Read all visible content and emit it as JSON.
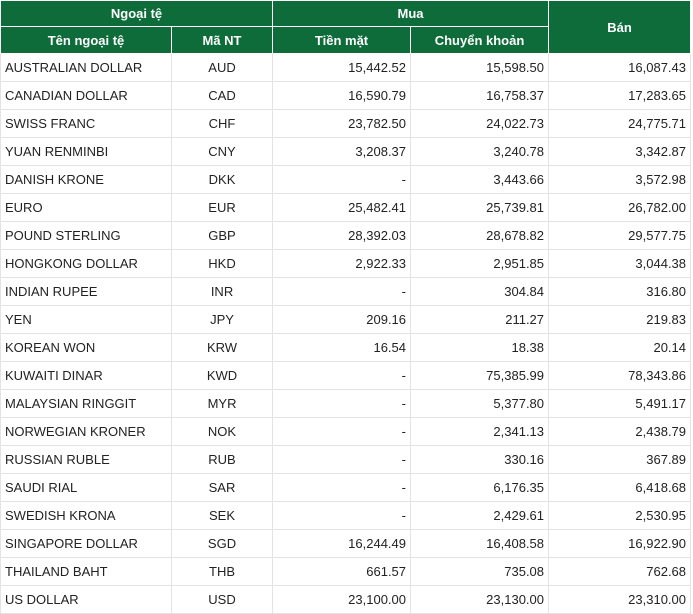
{
  "header": {
    "group_currency": "Ngoại tệ",
    "group_buy": "Mua",
    "sell": "Bán",
    "col_name": "Tên ngoại tệ",
    "col_code": "Mã NT",
    "col_cash": "Tiền mặt",
    "col_transfer": "Chuyển khoản"
  },
  "rows": [
    {
      "name": "AUSTRALIAN DOLLAR",
      "code": "AUD",
      "cash": "15,442.52",
      "transfer": "15,598.50",
      "sell": "16,087.43"
    },
    {
      "name": "CANADIAN DOLLAR",
      "code": "CAD",
      "cash": "16,590.79",
      "transfer": "16,758.37",
      "sell": "17,283.65"
    },
    {
      "name": "SWISS FRANC",
      "code": "CHF",
      "cash": "23,782.50",
      "transfer": "24,022.73",
      "sell": "24,775.71"
    },
    {
      "name": "YUAN RENMINBI",
      "code": "CNY",
      "cash": "3,208.37",
      "transfer": "3,240.78",
      "sell": "3,342.87"
    },
    {
      "name": "DANISH KRONE",
      "code": "DKK",
      "cash": "-",
      "transfer": "3,443.66",
      "sell": "3,572.98"
    },
    {
      "name": "EURO",
      "code": "EUR",
      "cash": "25,482.41",
      "transfer": "25,739.81",
      "sell": "26,782.00"
    },
    {
      "name": "POUND STERLING",
      "code": "GBP",
      "cash": "28,392.03",
      "transfer": "28,678.82",
      "sell": "29,577.75"
    },
    {
      "name": "HONGKONG DOLLAR",
      "code": "HKD",
      "cash": "2,922.33",
      "transfer": "2,951.85",
      "sell": "3,044.38"
    },
    {
      "name": "INDIAN RUPEE",
      "code": "INR",
      "cash": "-",
      "transfer": "304.84",
      "sell": "316.80"
    },
    {
      "name": "YEN",
      "code": "JPY",
      "cash": "209.16",
      "transfer": "211.27",
      "sell": "219.83"
    },
    {
      "name": "KOREAN WON",
      "code": "KRW",
      "cash": "16.54",
      "transfer": "18.38",
      "sell": "20.14"
    },
    {
      "name": "KUWAITI DINAR",
      "code": "KWD",
      "cash": "-",
      "transfer": "75,385.99",
      "sell": "78,343.86"
    },
    {
      "name": "MALAYSIAN RINGGIT",
      "code": "MYR",
      "cash": "-",
      "transfer": "5,377.80",
      "sell": "5,491.17"
    },
    {
      "name": "NORWEGIAN KRONER",
      "code": "NOK",
      "cash": "-",
      "transfer": "2,341.13",
      "sell": "2,438.79"
    },
    {
      "name": "RUSSIAN RUBLE",
      "code": "RUB",
      "cash": "-",
      "transfer": "330.16",
      "sell": "367.89"
    },
    {
      "name": "SAUDI RIAL",
      "code": "SAR",
      "cash": "-",
      "transfer": "6,176.35",
      "sell": "6,418.68"
    },
    {
      "name": "SWEDISH KRONA",
      "code": "SEK",
      "cash": "-",
      "transfer": "2,429.61",
      "sell": "2,530.95"
    },
    {
      "name": "SINGAPORE DOLLAR",
      "code": "SGD",
      "cash": "16,244.49",
      "transfer": "16,408.58",
      "sell": "16,922.90"
    },
    {
      "name": "THAILAND BAHT",
      "code": "THB",
      "cash": "661.57",
      "transfer": "735.08",
      "sell": "762.68"
    },
    {
      "name": "US DOLLAR",
      "code": "USD",
      "cash": "23,100.00",
      "transfer": "23,130.00",
      "sell": "23,310.00"
    }
  ]
}
